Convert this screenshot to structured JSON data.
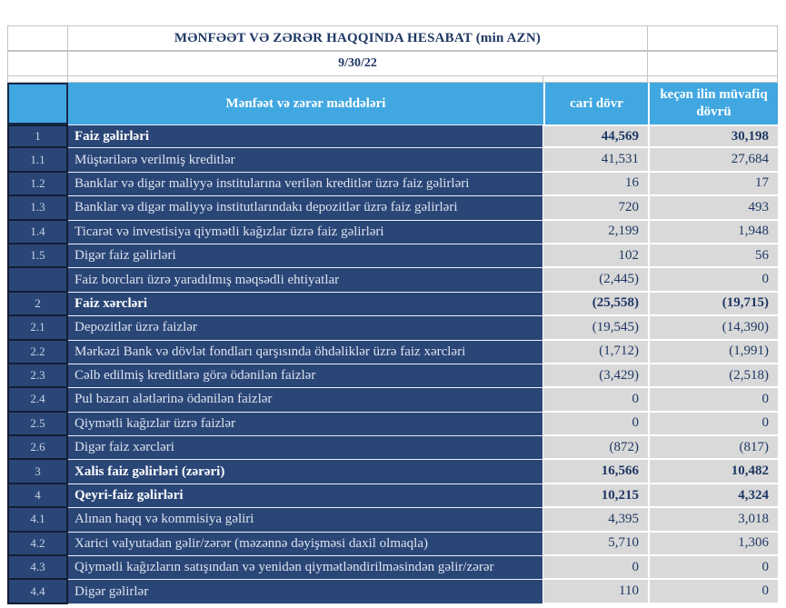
{
  "report": {
    "title": "MƏNFƏƏT VƏ ZƏRƏR HAQQINDA HESABAT (min AZN)",
    "date": "9/30/22"
  },
  "columns": {
    "items": "Mənfəət və zərər maddələri",
    "current": "cari dövr",
    "prior": "keçən ilin müvafiq dövrü"
  },
  "colors": {
    "header_blue": "#41a7e1",
    "row_navy": "#2a4677",
    "value_gray": "#d9d9d9",
    "text_navy": "#1f3864",
    "border_dark": "#121d36"
  },
  "rows": [
    {
      "no": "1",
      "label": "Faiz  gəlirləri",
      "current": "44,569",
      "prior": "30,198",
      "bold": true
    },
    {
      "no": "1.1",
      "label": "Müştərilərə verilmiş kreditlər",
      "current": "41,531",
      "prior": "27,684",
      "bold": false
    },
    {
      "no": "1.2",
      "label": "Banklar və digər maliyyə institularına verilən kreditlər üzrə faiz gəlirləri",
      "current": "16",
      "prior": "17",
      "bold": false
    },
    {
      "no": "1.3",
      "label": "Banklar və digər maliyyə institutlarındakı depozitlər üzrə faiz gəlirləri",
      "current": "720",
      "prior": "493",
      "bold": false
    },
    {
      "no": "1.4",
      "label": "Ticarət və investisiya qiymətli kağızlar üzrə faiz gəlirləri",
      "current": "2,199",
      "prior": "1,948",
      "bold": false
    },
    {
      "no": "1.5",
      "label": "Digər faiz gəlirləri",
      "current": "102",
      "prior": "56",
      "bold": false
    },
    {
      "no": "",
      "label": "Faiz borcları üzrə yaradılmış məqsədli ehtiyatlar",
      "current": "(2,445)",
      "prior": "0",
      "bold": false
    },
    {
      "no": "2",
      "label": "Faiz xərcləri",
      "current": "(25,558)",
      "prior": "(19,715)",
      "bold": true
    },
    {
      "no": "2.1",
      "label": "Depozitlər üzrə faizlər",
      "current": "(19,545)",
      "prior": "(14,390)",
      "bold": false
    },
    {
      "no": "2.2",
      "label": "Mərkəzi Bank və dövlət fondları qarşısında öhdəliklər üzrə faiz xərcləri",
      "current": "(1,712)",
      "prior": "(1,991)",
      "bold": false
    },
    {
      "no": "2.3",
      "label": "Cəlb edilmiş kreditlərə görə ödənilən faizlər",
      "current": "(3,429)",
      "prior": "(2,518)",
      "bold": false
    },
    {
      "no": "2.4",
      "label": "Pul bazarı alətlərinə ödənilən faizlər",
      "current": "0",
      "prior": "0",
      "bold": false
    },
    {
      "no": "2.5",
      "label": "Qiymətli kağızlar üzrə faizlər",
      "current": "0",
      "prior": "0",
      "bold": false
    },
    {
      "no": "2.6",
      "label": "Digər faiz xərcləri",
      "current": "(872)",
      "prior": "(817)",
      "bold": false
    },
    {
      "no": "3",
      "label": "Xalis faiz gəlirləri (zərəri)",
      "current": "16,566",
      "prior": "10,482",
      "bold": true
    },
    {
      "no": "4",
      "label": "Qeyri-faiz gəlirləri",
      "current": "10,215",
      "prior": "4,324",
      "bold": true
    },
    {
      "no": "4.1",
      "label": "Alınan haqq və kommisiya gəliri",
      "current": "4,395",
      "prior": "3,018",
      "bold": false
    },
    {
      "no": "4.2",
      "label": "Xarici valyutadan gəlir/zərər (məzənnə dəyişməsi daxil olmaqla)",
      "current": "5,710",
      "prior": "1,306",
      "bold": false
    },
    {
      "no": "4.3",
      "label": "Qiymətli kağızların satışından və yenidən qiymətləndirilməsindən gəlir/zərər",
      "current": "0",
      "prior": "0",
      "bold": false
    },
    {
      "no": "4.4",
      "label": "Digər gəlirlər",
      "current": "110",
      "prior": "0",
      "bold": false
    }
  ]
}
